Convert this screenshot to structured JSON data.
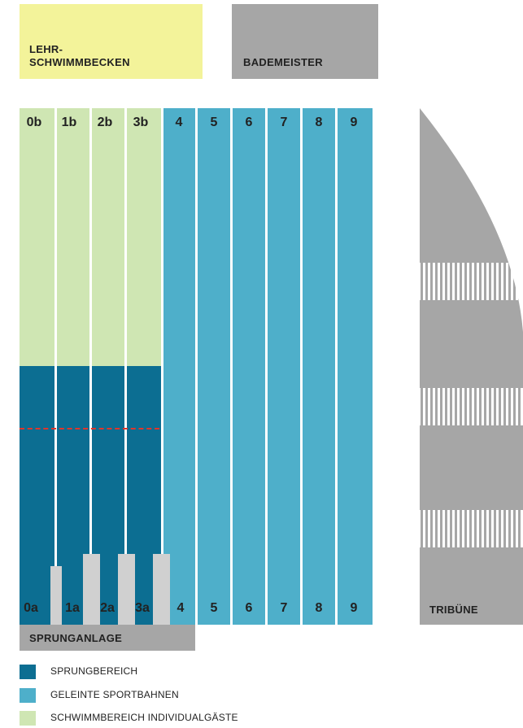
{
  "colors": {
    "sprungbereich": "#0c6e92",
    "sportbahnen": "#4eafca",
    "individual": "#cfe6b3",
    "lehr": "#f3f39a",
    "grey": "#a6a6a6",
    "light_grey": "#d0d0d0"
  },
  "areas": {
    "lehr_line1": "LEHR-",
    "lehr_line2": "SCHWIMMBECKEN",
    "bademeister": "BADEMEISTER",
    "sprunganlage": "SPRUNGANLAGE",
    "tribuene": "TRIBÜNE"
  },
  "lanes_top": [
    "0b",
    "1b",
    "2b",
    "3b",
    "4",
    "5",
    "6",
    "7",
    "8",
    "9"
  ],
  "lanes_bottom": [
    "0a",
    "1a",
    "2a",
    "3a",
    "4",
    "5",
    "6",
    "7",
    "8",
    "9"
  ],
  "legend": [
    {
      "label": "SPRUNGBEREICH",
      "color_key": "sprungbereich"
    },
    {
      "label": "GELEINTE SPORTBAHNEN",
      "color_key": "sportbahnen"
    },
    {
      "label": "SCHWIMMBEREICH INDIVIDUALGÄSTE",
      "color_key": "individual"
    }
  ]
}
